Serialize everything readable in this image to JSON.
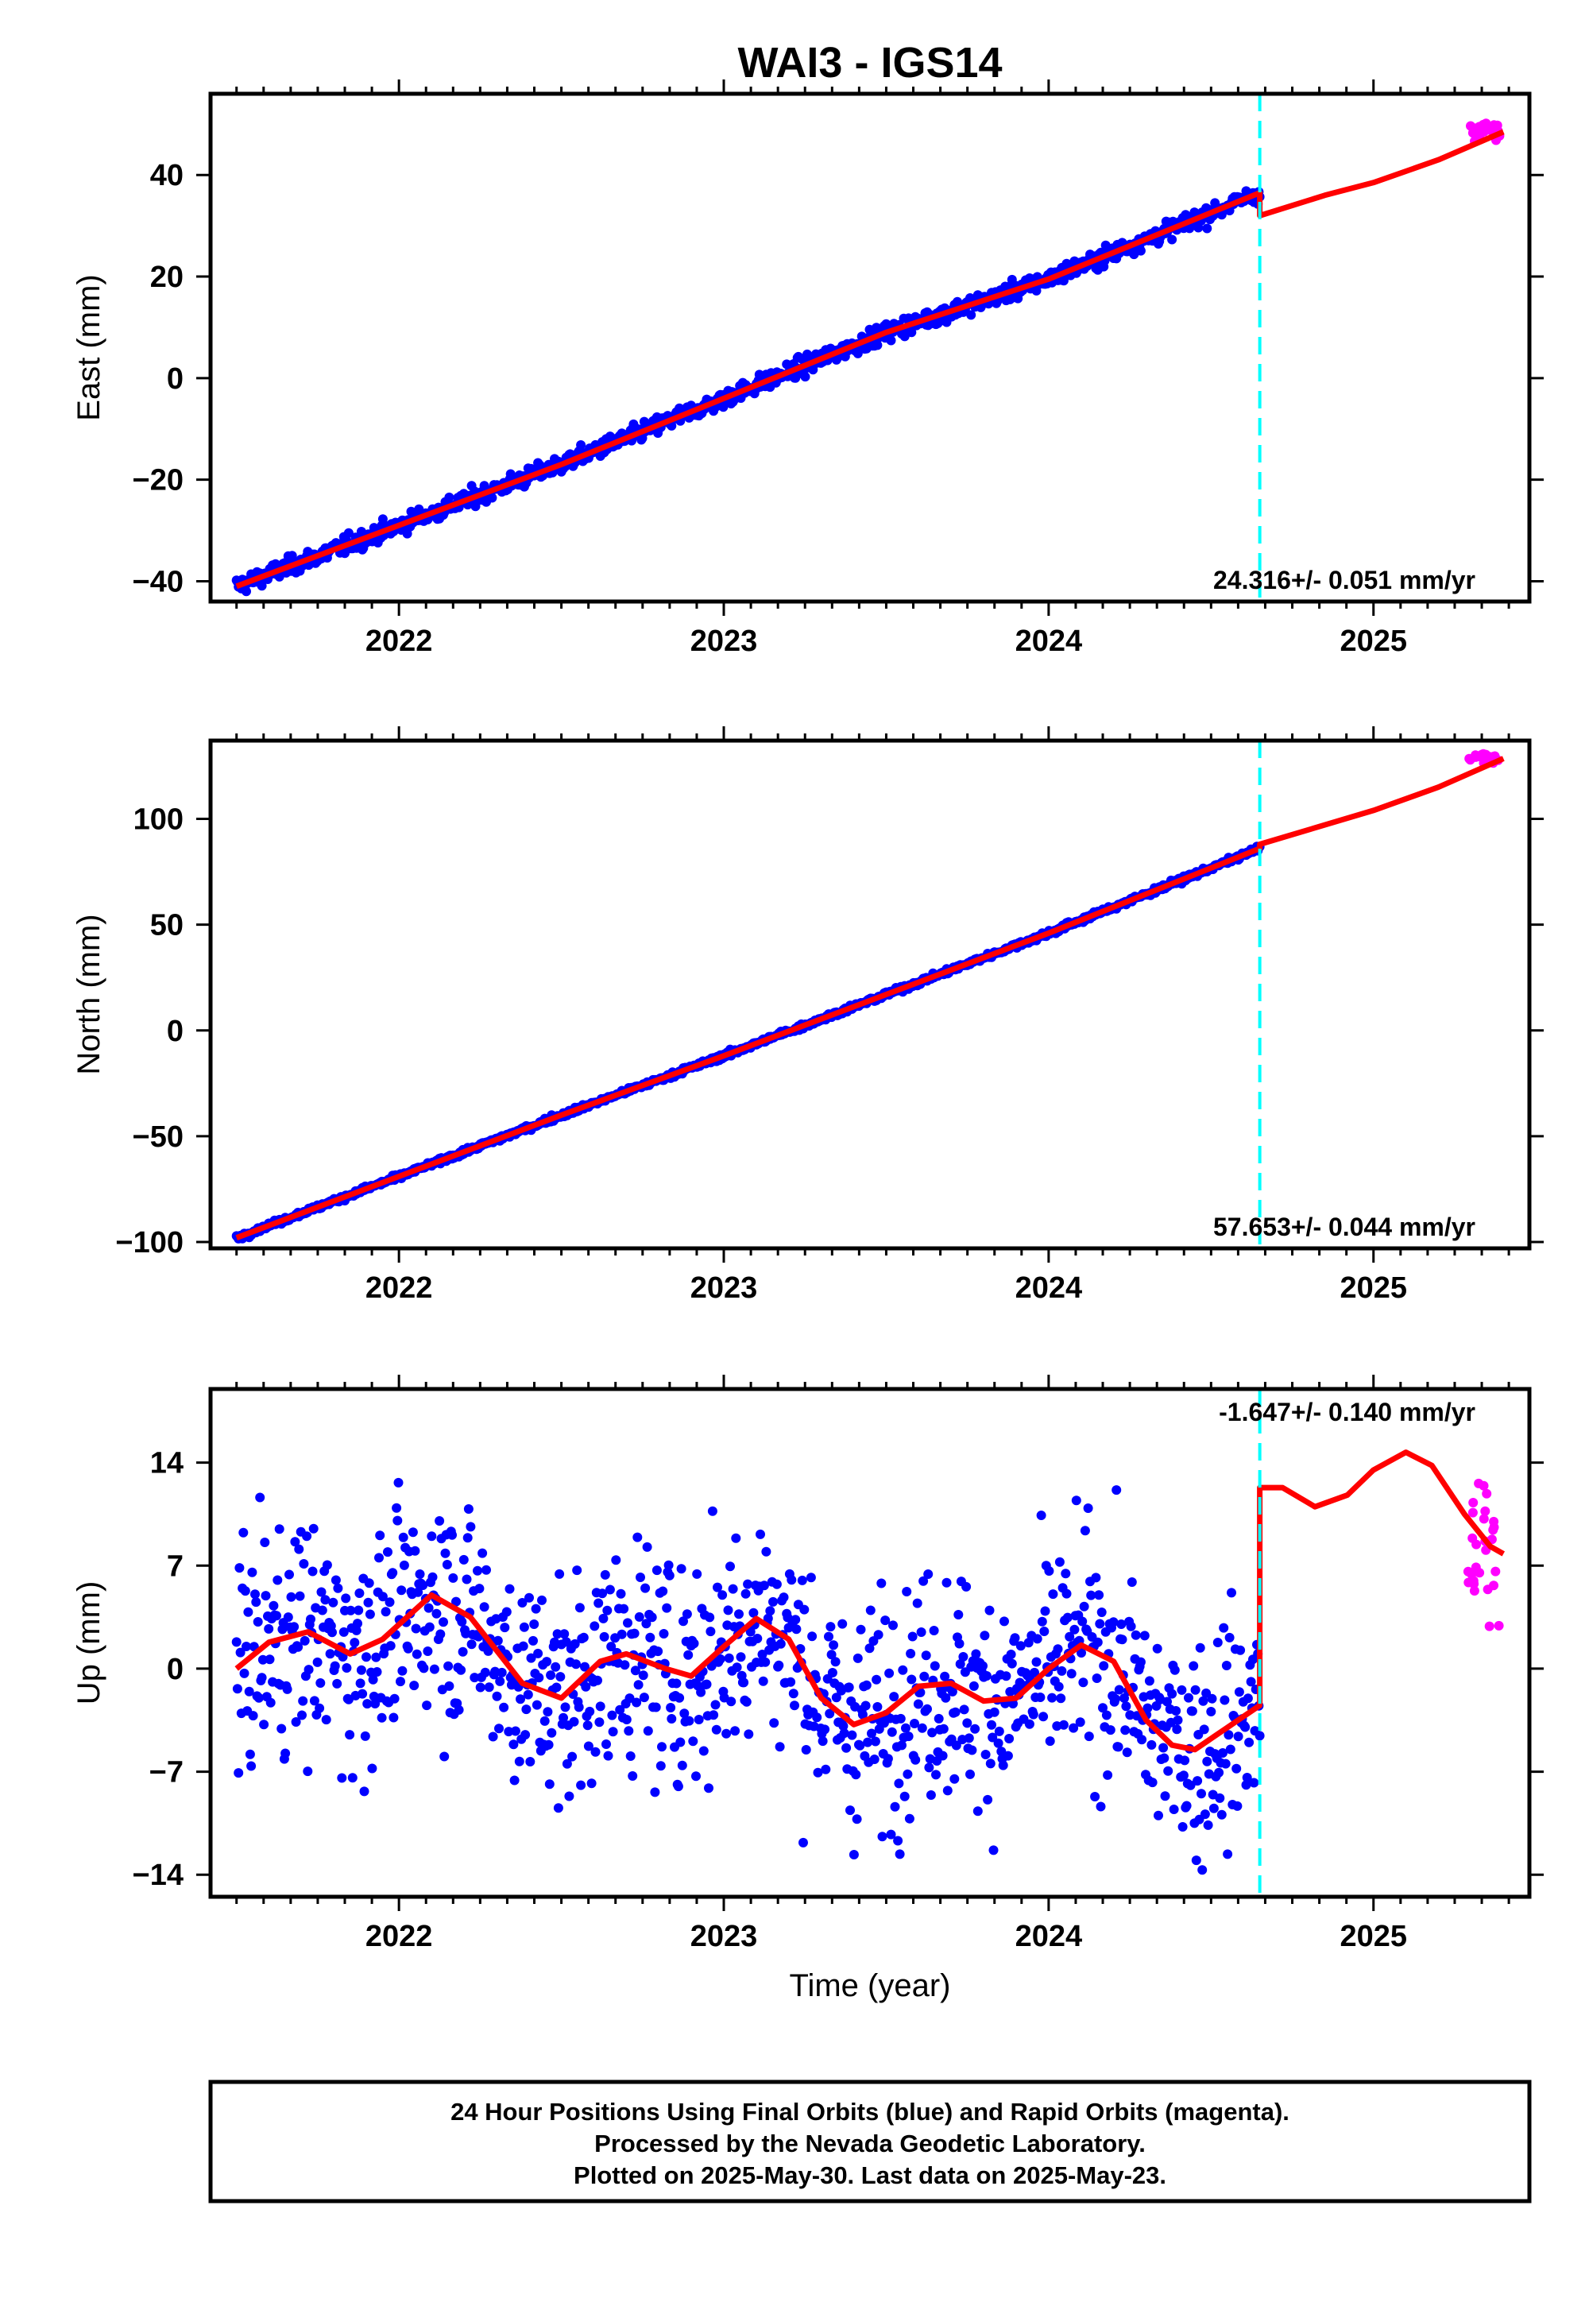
{
  "title": "WAI3 - IGS14",
  "footer": {
    "lines": [
      "24 Hour Positions Using Final Orbits (blue) and Rapid Orbits (magenta).",
      "Processed by the Nevada Geodetic Laboratory.",
      "Plotted on 2025-May-30. Last data on 2025-May-23."
    ]
  },
  "colors": {
    "final": "#0000ff",
    "rapid": "#ff00ff",
    "model": "#ff0000",
    "break": "#00ffff",
    "frame": "#000000"
  },
  "chart_data": [
    {
      "type": "scatter",
      "ylabel": "East (mm)",
      "xlabel": "",
      "xlim": [
        2021.42,
        2025.48
      ],
      "ylim": [
        -44,
        56
      ],
      "xticks": [
        2022,
        2023,
        2024,
        2025
      ],
      "yticks": [
        -40,
        -20,
        0,
        20,
        40
      ],
      "ytick_labels": [
        "−40",
        "−20",
        "0",
        "20",
        "40"
      ],
      "rate": "24.316+/- 0.051 mm/yr",
      "rate_position": "bottom-right",
      "break_year": 2024.65,
      "final": {
        "start": 2021.5,
        "end": 2024.65,
        "y0": -41.0,
        "slope": 24.316,
        "ann": 1.0,
        "sann": 0.8,
        "noise": 1.6,
        "n": 1050
      },
      "rapid": {
        "start": 2025.29,
        "end": 2025.39,
        "n": 25,
        "y0": 48.5,
        "noise": 1.8
      },
      "model": [
        [
          2021.5,
          -41.0
        ],
        [
          2022.0,
          -29.0
        ],
        [
          2022.5,
          -17.0
        ],
        [
          2023.0,
          -4.0
        ],
        [
          2023.5,
          9.0
        ],
        [
          2024.0,
          19.5
        ],
        [
          2024.65,
          36.5
        ],
        [
          2024.65,
          32.0
        ],
        [
          2024.85,
          36.0
        ],
        [
          2025.0,
          38.5
        ],
        [
          2025.2,
          43.0
        ],
        [
          2025.4,
          48.5
        ]
      ]
    },
    {
      "type": "scatter",
      "ylabel": "North (mm)",
      "xlabel": "",
      "xlim": [
        2021.42,
        2025.48
      ],
      "ylim": [
        -103,
        137
      ],
      "xticks": [
        2022,
        2023,
        2024,
        2025
      ],
      "yticks": [
        -100,
        -50,
        0,
        50,
        100
      ],
      "ytick_labels": [
        "−100",
        "−50",
        "0",
        "50",
        "100"
      ],
      "rate": "57.653+/- 0.044 mm/yr",
      "rate_position": "bottom-right",
      "break_year": 2024.65,
      "final": {
        "start": 2021.5,
        "end": 2024.65,
        "y0": -98.0,
        "slope": 57.653,
        "ann": 0.8,
        "sann": 0.5,
        "noise": 1.2,
        "n": 1050
      },
      "rapid": {
        "start": 2025.29,
        "end": 2025.39,
        "n": 25,
        "y0": 129.0,
        "noise": 2.0
      },
      "model": [
        [
          2021.5,
          -98.0
        ],
        [
          2022.0,
          -69.0
        ],
        [
          2022.5,
          -40.0
        ],
        [
          2023.0,
          -12.0
        ],
        [
          2023.5,
          17.0
        ],
        [
          2024.0,
          46.0
        ],
        [
          2024.65,
          86.0
        ],
        [
          2024.65,
          88.0
        ],
        [
          2025.0,
          104.0
        ],
        [
          2025.2,
          115.0
        ],
        [
          2025.4,
          128.5
        ]
      ]
    },
    {
      "type": "scatter",
      "ylabel": "Up (mm)",
      "xlabel": "Time (year)",
      "xlim": [
        2021.42,
        2025.48
      ],
      "ylim": [
        -15.5,
        19
      ],
      "xticks": [
        2022,
        2023,
        2024,
        2025
      ],
      "yticks": [
        -14,
        -7,
        0,
        7,
        14
      ],
      "ytick_labels": [
        "−14",
        "−7",
        "0",
        "7",
        "14"
      ],
      "rate": "-1.647+/- 0.140 mm/yr",
      "rate_position": "top-right",
      "break_year": 2024.65,
      "final": {
        "start": 2021.5,
        "end": 2024.65,
        "y0": 0.0,
        "slope": -1.647,
        "ann": 2.6,
        "sann": 1.2,
        "noise": 3.8,
        "n": 1050
      },
      "rapid": {
        "start": 2025.29,
        "end": 2025.39,
        "n": 28,
        "y0": 7.5,
        "noise": 5.5
      },
      "model": [
        [
          2021.5,
          0.0
        ],
        [
          2021.6,
          1.8
        ],
        [
          2021.72,
          2.5
        ],
        [
          2021.85,
          1.0
        ],
        [
          2021.95,
          2.0
        ],
        [
          2022.1,
          5.0
        ],
        [
          2022.22,
          3.5
        ],
        [
          2022.38,
          -1.0
        ],
        [
          2022.5,
          -2.0
        ],
        [
          2022.62,
          0.5
        ],
        [
          2022.7,
          1.0
        ],
        [
          2022.82,
          0.0
        ],
        [
          2022.9,
          -0.5
        ],
        [
          2023.0,
          1.5
        ],
        [
          2023.1,
          3.4
        ],
        [
          2023.2,
          2.0
        ],
        [
          2023.3,
          -2.0
        ],
        [
          2023.4,
          -3.8
        ],
        [
          2023.5,
          -3.0
        ],
        [
          2023.6,
          -1.2
        ],
        [
          2023.7,
          -1.0
        ],
        [
          2023.8,
          -2.2
        ],
        [
          2023.9,
          -2.0
        ],
        [
          2024.0,
          0.0
        ],
        [
          2024.1,
          1.6
        ],
        [
          2024.2,
          0.5
        ],
        [
          2024.3,
          -3.5
        ],
        [
          2024.38,
          -5.2
        ],
        [
          2024.45,
          -5.5
        ],
        [
          2024.55,
          -4.0
        ],
        [
          2024.65,
          -2.5
        ],
        [
          2024.65,
          12.3
        ],
        [
          2024.72,
          12.3
        ],
        [
          2024.82,
          11.0
        ],
        [
          2024.92,
          11.8
        ],
        [
          2025.0,
          13.5
        ],
        [
          2025.1,
          14.7
        ],
        [
          2025.18,
          13.8
        ],
        [
          2025.28,
          10.5
        ],
        [
          2025.36,
          8.3
        ],
        [
          2025.4,
          7.8
        ]
      ]
    }
  ]
}
